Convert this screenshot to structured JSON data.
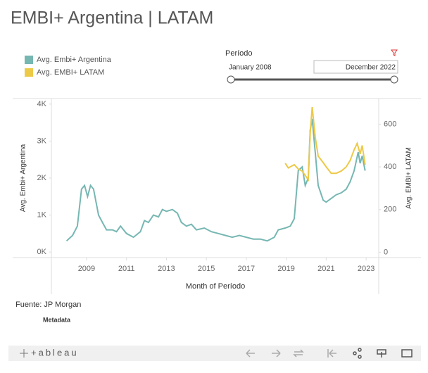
{
  "header": {
    "title": "EMBI+ Argentina | LATAM"
  },
  "filter": {
    "label": "Período",
    "start": "January 2008",
    "end": "December 2022"
  },
  "chart_data": {
    "type": "line",
    "x_label": "Month of Período",
    "y_label": "Avg. Embi+ Argentina",
    "y2_label": "Avg. EMBI+ LATAM",
    "xlim": [
      2007.24,
      2023.63
    ],
    "xticks": [
      2009,
      2011,
      2013,
      2015,
      2017,
      2019,
      2021,
      2023
    ],
    "ylim": [
      -150,
      4150
    ],
    "yticks": [
      {
        "value": 0,
        "label": "0K"
      },
      {
        "value": 1000,
        "label": "1K"
      },
      {
        "value": 2000,
        "label": "2K"
      },
      {
        "value": 3000,
        "label": "3K"
      },
      {
        "value": 4000,
        "label": "4K"
      }
    ],
    "y2lim": [
      -25,
      720
    ],
    "y2ticks": [
      0,
      200,
      400,
      600
    ],
    "series": [
      {
        "name": "Avg. Embi+ Argentina",
        "color": "#76b7b2",
        "x": [
          2008.0,
          2008.3,
          2008.54,
          2008.75,
          2008.9,
          2009.05,
          2009.2,
          2009.35,
          2009.6,
          2009.8,
          2010.0,
          2010.3,
          2010.5,
          2010.7,
          2011.0,
          2011.35,
          2011.7,
          2011.9,
          2012.1,
          2012.35,
          2012.6,
          2012.8,
          2013.0,
          2013.3,
          2013.55,
          2013.75,
          2014.0,
          2014.25,
          2014.5,
          2014.9,
          2015.25,
          2015.6,
          2015.95,
          2016.3,
          2016.65,
          2017.0,
          2017.35,
          2017.7,
          2018.05,
          2018.4,
          2018.6,
          2018.95,
          2019.2,
          2019.4,
          2019.6,
          2019.8,
          2019.95,
          2020.1,
          2020.2,
          2020.3,
          2020.45,
          2020.6,
          2020.85,
          2021.0,
          2021.25,
          2021.5,
          2021.75,
          2022.0,
          2022.2,
          2022.4,
          2022.6,
          2022.7,
          2022.8,
          2022.95
        ],
        "values": [
          300,
          450,
          700,
          1700,
          1800,
          1500,
          1800,
          1700,
          1000,
          800,
          600,
          600,
          550,
          700,
          500,
          400,
          550,
          850,
          800,
          1000,
          950,
          1150,
          1100,
          1150,
          1050,
          800,
          700,
          750,
          600,
          650,
          550,
          500,
          450,
          400,
          450,
          400,
          350,
          350,
          300,
          400,
          600,
          650,
          700,
          900,
          2200,
          2300,
          1800,
          2000,
          3300,
          3600,
          2700,
          1800,
          1400,
          1350,
          1450,
          1550,
          1600,
          1700,
          1900,
          2200,
          2700,
          2400,
          2600,
          2200
        ]
      },
      {
        "name": "Avg. EMBI+ LATAM",
        "color": "#edc948",
        "axis": "y2",
        "x": [
          2018.95,
          2019.1,
          2019.4,
          2019.6,
          2019.8,
          2020.1,
          2020.2,
          2020.3,
          2020.45,
          2020.6,
          2020.85,
          2021.0,
          2021.25,
          2021.5,
          2021.75,
          2022.0,
          2022.2,
          2022.4,
          2022.55,
          2022.7,
          2022.8,
          2022.95
        ],
        "values": [
          417,
          395,
          410,
          390,
          380,
          340,
          560,
          680,
          540,
          450,
          420,
          400,
          370,
          370,
          380,
          400,
          430,
          480,
          510,
          460,
          500,
          410
        ]
      }
    ]
  },
  "footer": {
    "source": "Fuente: JP Morgan",
    "metadata": "Metadata",
    "logo": "+ableau"
  }
}
